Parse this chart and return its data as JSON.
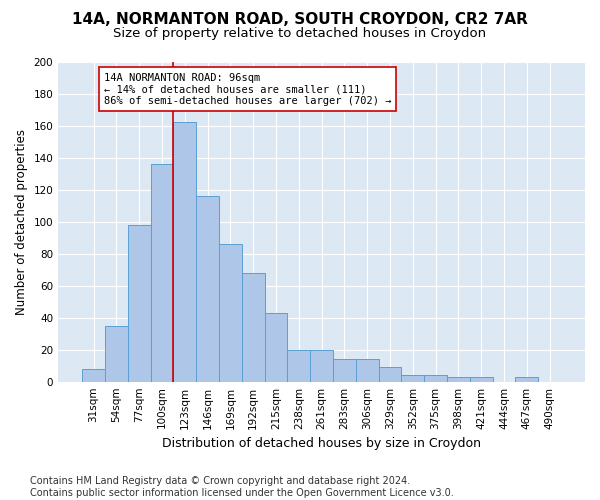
{
  "title": "14A, NORMANTON ROAD, SOUTH CROYDON, CR2 7AR",
  "subtitle": "Size of property relative to detached houses in Croydon",
  "xlabel": "Distribution of detached houses by size in Croydon",
  "ylabel": "Number of detached properties",
  "bin_labels": [
    "31sqm",
    "54sqm",
    "77sqm",
    "100sqm",
    "123sqm",
    "146sqm",
    "169sqm",
    "192sqm",
    "215sqm",
    "238sqm",
    "261sqm",
    "283sqm",
    "306sqm",
    "329sqm",
    "352sqm",
    "375sqm",
    "398sqm",
    "421sqm",
    "444sqm",
    "467sqm",
    "490sqm"
  ],
  "bar_values": [
    8,
    35,
    98,
    136,
    162,
    116,
    86,
    68,
    43,
    20,
    20,
    14,
    14,
    9,
    4,
    4,
    3,
    3,
    0,
    3,
    0
  ],
  "bar_color": "#aec6e8",
  "bar_edge_color": "#5a9fd4",
  "vline_x": 3.5,
  "vline_color": "#cc0000",
  "annotation_text": "14A NORMANTON ROAD: 96sqm\n← 14% of detached houses are smaller (111)\n86% of semi-detached houses are larger (702) →",
  "annotation_box_color": "#ffffff",
  "annotation_box_edge": "#cc0000",
  "ylim": [
    0,
    200
  ],
  "yticks": [
    0,
    20,
    40,
    60,
    80,
    100,
    120,
    140,
    160,
    180,
    200
  ],
  "background_color": "#dce9f5",
  "footer": "Contains HM Land Registry data © Crown copyright and database right 2024.\nContains public sector information licensed under the Open Government Licence v3.0.",
  "title_fontsize": 11,
  "subtitle_fontsize": 9.5,
  "xlabel_fontsize": 9,
  "ylabel_fontsize": 8.5,
  "tick_fontsize": 7.5,
  "footer_fontsize": 7
}
